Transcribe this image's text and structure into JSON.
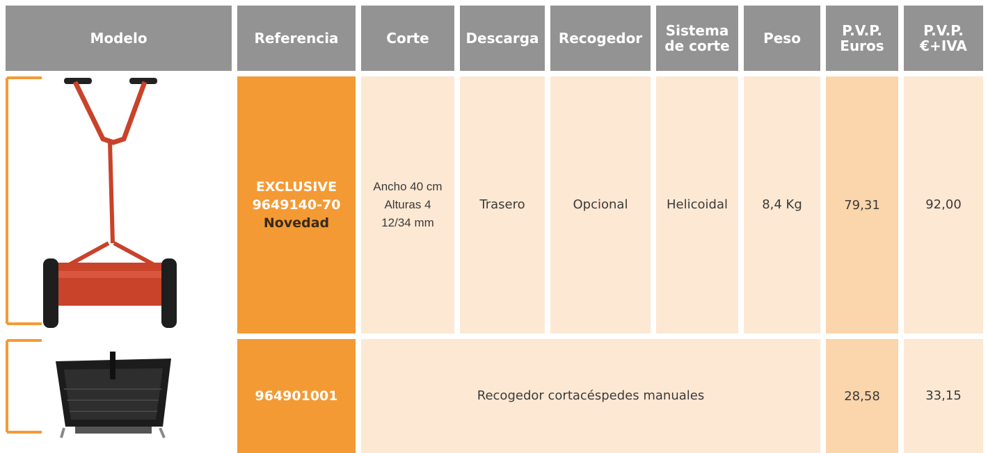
{
  "table": {
    "columns": [
      [
        "Modelo"
      ],
      [
        "Referencia"
      ],
      [
        "Corte"
      ],
      [
        "Descarga"
      ],
      [
        "Recogedor"
      ],
      [
        "Sistema",
        "de corte"
      ],
      [
        "Peso"
      ],
      [
        "P.V.P.",
        "Euros"
      ],
      [
        "P.V.P.",
        "€+IVA"
      ]
    ],
    "rows": [
      {
        "reference": [
          "EXCLUSIVE",
          "9649140-70",
          "Novedad"
        ],
        "corte": [
          "Ancho 40 cm",
          "Alturas 4",
          "12/34 mm"
        ],
        "descarga": "Trasero",
        "recogedor": "Opcional",
        "sistema": "Helicoidal",
        "peso": "8,4 Kg",
        "pvp": "79,31",
        "pvp_iva": "92,00"
      },
      {
        "reference": [
          "964901001"
        ],
        "description": "Recogedor cortacéspedes manuales",
        "pvp": "28,58",
        "pvp_iva": "33,15"
      }
    ]
  }
}
